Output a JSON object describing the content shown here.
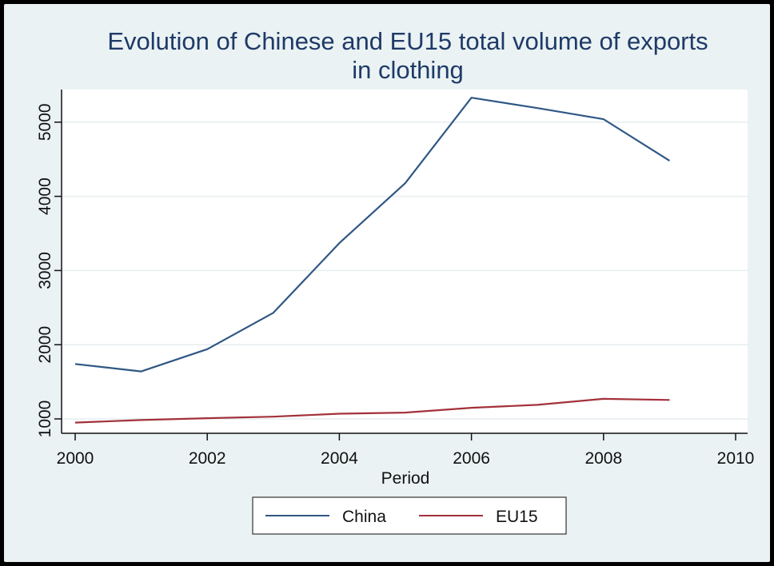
{
  "chart_data": {
    "type": "line",
    "title_lines": [
      "Evolution of Chinese and EU15 total volume of exports",
      "in clothing"
    ],
    "xlabel": "Period",
    "ylabel": "",
    "xlim": [
      2000,
      2010
    ],
    "ylim": [
      800,
      5400
    ],
    "xticks": [
      2000,
      2002,
      2004,
      2006,
      2008,
      2010
    ],
    "yticks": [
      1000,
      2000,
      3000,
      4000,
      5000
    ],
    "grid": true,
    "legend_position": "bottom",
    "x": [
      2000,
      2001,
      2002,
      2003,
      2004,
      2005,
      2006,
      2007,
      2008,
      2009
    ],
    "series": [
      {
        "name": "China",
        "color": "#2f5784",
        "values": [
          1740,
          1640,
          1940,
          2430,
          3370,
          4180,
          5330,
          5190,
          5040,
          4480
        ]
      },
      {
        "name": "EU15",
        "color": "#a3313a",
        "values": [
          950,
          985,
          1010,
          1030,
          1070,
          1085,
          1150,
          1190,
          1270,
          1255
        ]
      }
    ]
  }
}
